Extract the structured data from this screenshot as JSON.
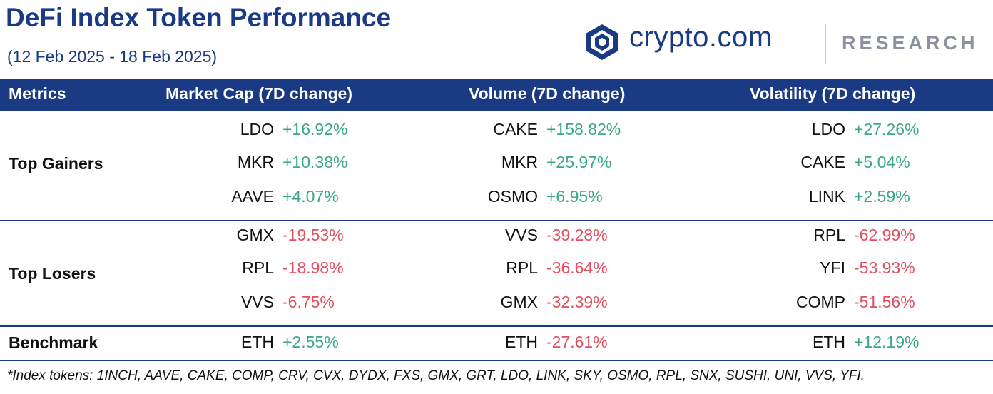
{
  "title": "DeFi Index Token Performance",
  "subtitle": "(12 Feb 2025 - 18 Feb 2025)",
  "logo": {
    "wordmark": "crypto.com",
    "research": "RESEARCH"
  },
  "columns": {
    "metrics": "Metrics",
    "market_cap": "Market Cap (7D change)",
    "volume": "Volume (7D change)",
    "volatility": "Volatility (7D change)"
  },
  "groups": {
    "gainers": {
      "label": "Top Gainers",
      "market_cap": [
        {
          "token": "LDO",
          "change": "+16.92%"
        },
        {
          "token": "MKR",
          "change": "+10.38%"
        },
        {
          "token": "AAVE",
          "change": "+4.07%"
        }
      ],
      "volume": [
        {
          "token": "CAKE",
          "change": "+158.82%"
        },
        {
          "token": "MKR",
          "change": "+25.97%"
        },
        {
          "token": "OSMO",
          "change": "+6.95%"
        }
      ],
      "volatility": [
        {
          "token": "LDO",
          "change": "+27.26%"
        },
        {
          "token": "CAKE",
          "change": "+5.04%"
        },
        {
          "token": "LINK",
          "change": "+2.59%"
        }
      ]
    },
    "losers": {
      "label": "Top Losers",
      "market_cap": [
        {
          "token": "GMX",
          "change": "-19.53%"
        },
        {
          "token": "RPL",
          "change": "-18.98%"
        },
        {
          "token": "VVS",
          "change": "-6.75%"
        }
      ],
      "volume": [
        {
          "token": "VVS",
          "change": "-39.28%"
        },
        {
          "token": "RPL",
          "change": "-36.64%"
        },
        {
          "token": "GMX",
          "change": "-32.39%"
        }
      ],
      "volatility": [
        {
          "token": "RPL",
          "change": "-62.99%"
        },
        {
          "token": "YFI",
          "change": "-53.93%"
        },
        {
          "token": "COMP",
          "change": "-51.56%"
        }
      ]
    },
    "benchmark": {
      "label": "Benchmark",
      "market_cap": [
        {
          "token": "ETH",
          "change": "+2.55%"
        }
      ],
      "volume": [
        {
          "token": "ETH",
          "change": "-27.61%"
        }
      ],
      "volatility": [
        {
          "token": "ETH",
          "change": "+12.19%"
        }
      ]
    }
  },
  "footnote": "*Index tokens: 1INCH, AAVE, CAKE, COMP, CRV, CVX, DYDX, FXS, GMX, GRT, LDO, LINK, SKY, OSMO, RPL, SNX, SUSHI, UNI, VVS, YFI.",
  "colors": {
    "brand": "#1b3a84",
    "positive": "#3aa883",
    "negative": "#e0505f"
  }
}
